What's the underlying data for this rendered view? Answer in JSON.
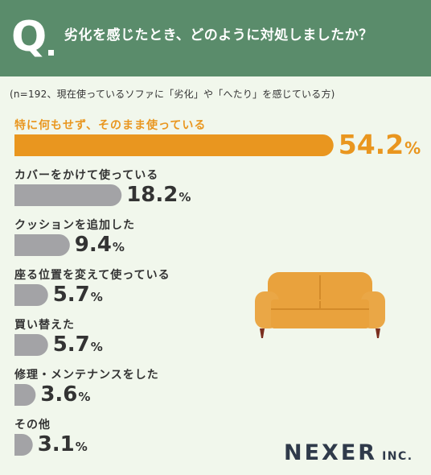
{
  "header": {
    "q_letter": "Q",
    "question": "劣化を感じたとき、どのように対処しましたか？"
  },
  "note": "(n=192、現在使っているソファに「劣化」や「へたり」を感じている方)",
  "chart_data": {
    "type": "bar",
    "orientation": "horizontal",
    "categories": [
      "特に何もせず、そのまま使っている",
      "カバーをかけて使っている",
      "クッションを追加した",
      "座る位置を変えて使っている",
      "買い替えた",
      "修理・メンテナンスをした",
      "その他"
    ],
    "values": [
      54.2,
      18.2,
      9.4,
      5.7,
      5.7,
      3.6,
      3.1
    ],
    "value_labels": [
      "54.2",
      "18.2",
      "9.4",
      "5.7",
      "5.7",
      "3.6",
      "3.1"
    ],
    "unit": "%",
    "highlight_index": 0,
    "colors": {
      "highlight": "#e9961f",
      "default": "#a3a3a6"
    }
  },
  "logo": {
    "main": "NEXER",
    "suffix": "INC."
  },
  "colors": {
    "header_bg": "#5a8c6b",
    "body_bg": "#f1f7ec",
    "accent": "#e9961f",
    "bar_gray": "#a3a3a6",
    "text": "#333333"
  },
  "illustration": {
    "icon": "sofa-icon"
  }
}
